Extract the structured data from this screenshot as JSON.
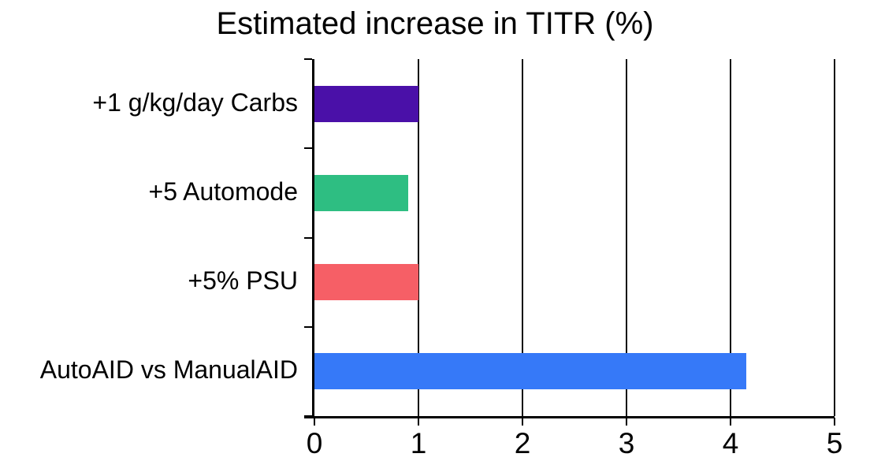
{
  "chart_data": {
    "type": "bar",
    "orientation": "horizontal",
    "title": "Estimated increase in TITR (%)",
    "categories": [
      "+1 g/kg/day Carbs",
      "+5 Automode",
      "+5% PSU",
      "AutoAID vs ManualAID"
    ],
    "values": [
      1.0,
      0.9,
      1.0,
      4.15
    ],
    "bar_colors": [
      "#4a10a8",
      "#2ebe82",
      "#f65f66",
      "#3679f8"
    ],
    "xlim": [
      0,
      5
    ],
    "x_ticks": [
      "0",
      "1",
      "2",
      "3",
      "4",
      "5"
    ],
    "xlabel": "",
    "ylabel": "",
    "grid": "vertical-gridlines-at-integer-ticks",
    "legend_position": "none"
  },
  "colors": {
    "background": "#ffffff",
    "axis": "#000000",
    "gridline": "#0d0d0d",
    "text": "#000000"
  }
}
